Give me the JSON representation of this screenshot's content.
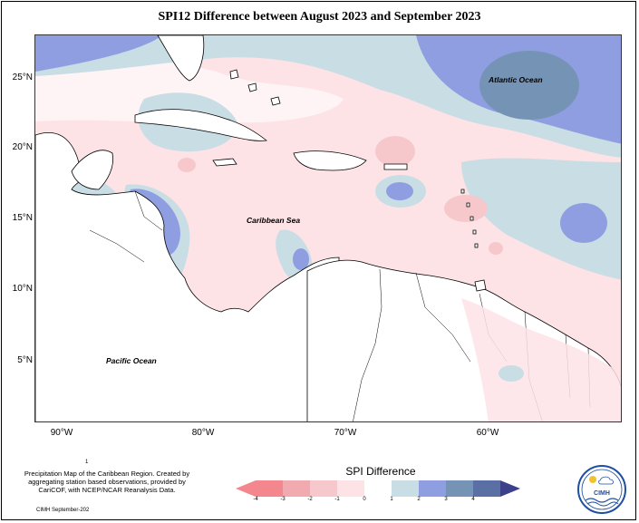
{
  "title": "SPI12 Difference between August 2023 and September 2023",
  "labels": {
    "atlantic": "Atlantic Ocean",
    "caribbean": "Caribbean Sea",
    "pacific": "Pacific Ocean"
  },
  "lat_ticks": [
    "25°N",
    "20°N",
    "15°N",
    "10°N",
    "5°N"
  ],
  "lon_ticks": [
    "90°W",
    "80°W",
    "70°W",
    "60°W"
  ],
  "small_mark": "1",
  "caption": "Precipitation Map of the Caribbean Region. Created by aggregating station based observations, provided by CariCOF, with NCEP/NCAR Reanalysis Data.",
  "credit": "CIMH September-202",
  "legend": {
    "title": "SPI Difference",
    "ticks": [
      "-4",
      "-3",
      "-2",
      "-1",
      "0",
      "1",
      "2",
      "3",
      "4"
    ],
    "colors": [
      "#f4878e",
      "#f0aab0",
      "#f6c8cc",
      "#fde3e6",
      "#ffffff",
      "#c9dde5",
      "#8f9ee0",
      "#7493b5",
      "#5a6fa3",
      "#3c3f8a"
    ]
  },
  "logo_text": "CIMH"
}
